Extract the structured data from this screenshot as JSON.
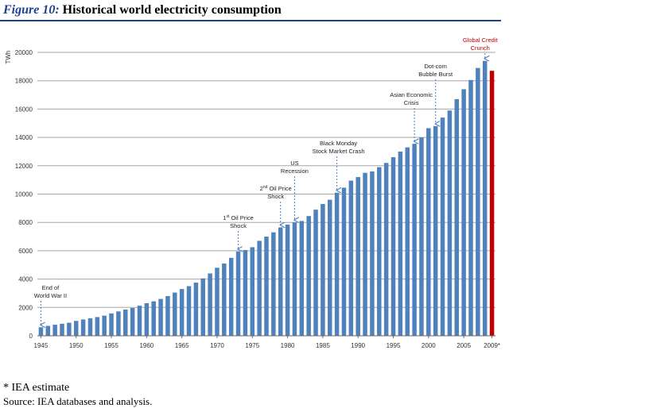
{
  "figure": {
    "number": "Figure 10:",
    "title": "Historical world electricity consumption"
  },
  "footnote": "* IEA estimate",
  "source": "Source: IEA databases and analysis.",
  "colors": {
    "bar": "#4f81bd",
    "highlight": "#c00000",
    "title_accent": "#1f3f8f"
  },
  "chart_data": {
    "type": "bar",
    "ylabel": "TWh",
    "ylim": [
      0,
      20000
    ],
    "yticks": [
      "0",
      "2000",
      "4000",
      "6000",
      "8000",
      "10000",
      "12000",
      "14000",
      "16000",
      "18000",
      "20000"
    ],
    "xtick_labels": [
      "1945",
      "1950",
      "1955",
      "1960",
      "1965",
      "1970",
      "1975",
      "1980",
      "1985",
      "1990",
      "1995",
      "2000",
      "2005",
      "2009*"
    ],
    "grid": true,
    "categories": [
      1945,
      1946,
      1947,
      1948,
      1949,
      1950,
      1951,
      1952,
      1953,
      1954,
      1955,
      1956,
      1957,
      1958,
      1959,
      1960,
      1961,
      1962,
      1963,
      1964,
      1965,
      1966,
      1967,
      1968,
      1969,
      1970,
      1971,
      1972,
      1973,
      1974,
      1975,
      1976,
      1977,
      1978,
      1979,
      1980,
      1981,
      1982,
      1983,
      1984,
      1985,
      1986,
      1987,
      1988,
      1989,
      1990,
      1991,
      1992,
      1993,
      1994,
      1995,
      1996,
      1997,
      1998,
      1999,
      2000,
      2001,
      2002,
      2003,
      2004,
      2005,
      2006,
      2007,
      2008,
      2009
    ],
    "values": [
      600,
      700,
      780,
      850,
      920,
      1050,
      1150,
      1230,
      1320,
      1420,
      1580,
      1720,
      1850,
      1960,
      2120,
      2300,
      2430,
      2600,
      2800,
      3050,
      3300,
      3500,
      3750,
      4050,
      4400,
      4800,
      5100,
      5500,
      5950,
      6050,
      6250,
      6700,
      7000,
      7300,
      7650,
      7850,
      8000,
      8100,
      8450,
      8900,
      9300,
      9600,
      10100,
      10450,
      10950,
      11200,
      11500,
      11600,
      11900,
      12200,
      12600,
      13000,
      13300,
      13550,
      14000,
      14650,
      14800,
      15400,
      15900,
      16700,
      17400,
      18050,
      18900,
      19400,
      18700
    ],
    "highlight_index": 64,
    "annotations": [
      {
        "lines": [
          "End of",
          "World War II"
        ],
        "year": 1945
      },
      {
        "lines": [
          "1st Oil Price",
          "Shock"
        ],
        "year": 1973
      },
      {
        "lines": [
          "2nd Oil Price",
          "Shock"
        ],
        "year": 1979
      },
      {
        "lines": [
          "US",
          "Recession"
        ],
        "year": 1981
      },
      {
        "lines": [
          "Black Monday",
          "Stock Market Crash"
        ],
        "year": 1987
      },
      {
        "lines": [
          "Asian Economic",
          "Crisis"
        ],
        "year": 1998
      },
      {
        "lines": [
          "Dot-com",
          "Bubble Burst"
        ],
        "year": 2001
      },
      {
        "lines": [
          "Global Credit",
          "Crunch"
        ],
        "year": 2008,
        "color": "#c00000"
      }
    ]
  }
}
